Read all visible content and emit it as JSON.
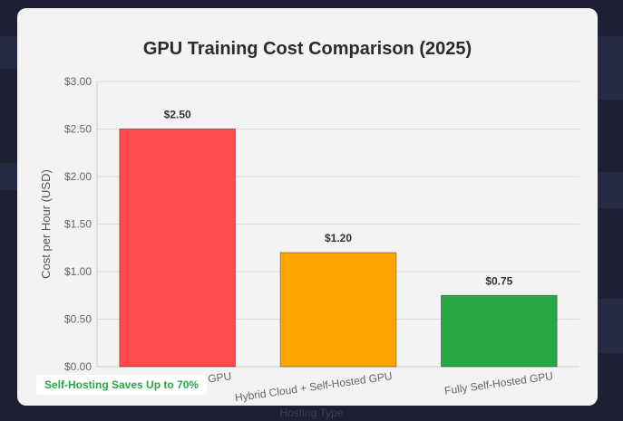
{
  "chart_data": {
    "type": "bar",
    "title": "GPU Training Cost Comparison (2025)",
    "xlabel": "Hosting Type",
    "ylabel": "Cost per Hour (USD)",
    "ylim": [
      0,
      3.0
    ],
    "yticks": [
      "$0.00",
      "$0.50",
      "$1.00",
      "$1.50",
      "$2.00",
      "$2.50",
      "$3.00"
    ],
    "categories": [
      "Cloud GPU",
      "Hybrid Cloud + Self-Hosted GPU",
      "Fully Self-Hosted GPU"
    ],
    "values": [
      2.5,
      1.2,
      0.75
    ],
    "data_labels": [
      "$2.50",
      "$1.20",
      "$0.75"
    ],
    "colors": [
      "#ff4b4b",
      "#ffa500",
      "#28a745"
    ],
    "grid": true
  },
  "badge": {
    "text": "Self-Hosting Saves Up to 70%"
  }
}
